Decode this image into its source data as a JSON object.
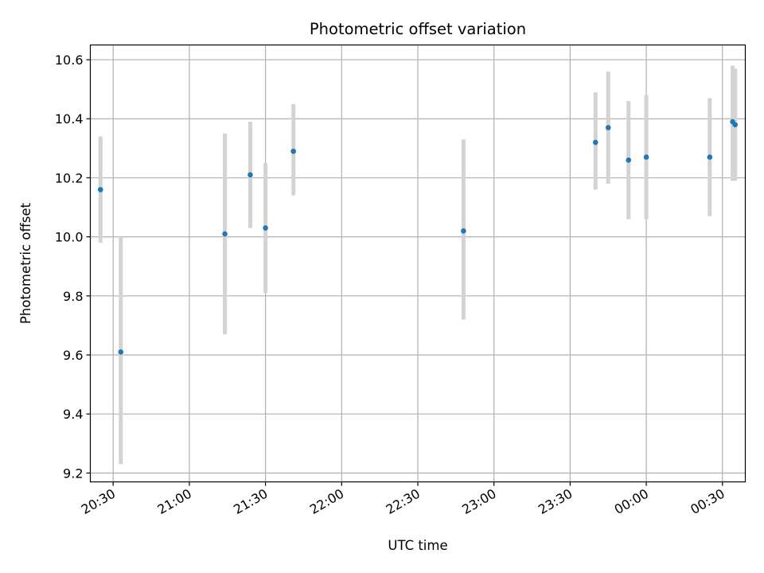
{
  "chart_data": {
    "type": "scatter",
    "title": "Photometric offset variation",
    "xlabel": "UTC time",
    "ylabel": "Photometric offset",
    "x_axis_kind": "time",
    "x_tick_labels": [
      "20:30",
      "21:00",
      "21:30",
      "22:00",
      "22:30",
      "23:00",
      "23:30",
      "00:00",
      "00:30"
    ],
    "xlim": [
      "20:21",
      "00:39"
    ],
    "ylim": [
      9.17,
      10.65
    ],
    "y_ticks": [
      9.2,
      9.4,
      9.6,
      9.8,
      10.0,
      10.2,
      10.4,
      10.6
    ],
    "y_tick_labels": [
      "9.2",
      "9.4",
      "9.6",
      "9.8",
      "10.0",
      "10.2",
      "10.4",
      "10.6"
    ],
    "grid": true,
    "colors": {
      "points": "#1f77b4",
      "error_bars": "#d3d3d3",
      "grid": "#b0b0b0"
    },
    "x": [
      "20:25",
      "20:33",
      "21:14",
      "21:24",
      "21:30",
      "21:41",
      "22:48",
      "23:40",
      "23:45",
      "23:53",
      "00:00",
      "00:25",
      "00:34",
      "00:35"
    ],
    "y": [
      10.16,
      9.61,
      10.01,
      10.21,
      10.03,
      10.29,
      10.02,
      10.32,
      10.37,
      10.26,
      10.27,
      10.27,
      10.39,
      10.38
    ],
    "y_lower": [
      9.98,
      9.23,
      9.67,
      10.03,
      9.81,
      10.14,
      9.72,
      10.16,
      10.18,
      10.06,
      10.06,
      10.07,
      10.19,
      10.19
    ],
    "y_upper": [
      10.34,
      10.0,
      10.35,
      10.39,
      10.25,
      10.45,
      10.33,
      10.49,
      10.56,
      10.46,
      10.48,
      10.47,
      10.58,
      10.57
    ]
  }
}
